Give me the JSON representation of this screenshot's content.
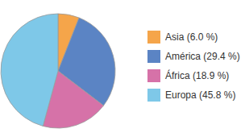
{
  "chart_data": {
    "type": "pie",
    "categories": [
      "Asia (6.0 %)",
      "América (29.4 %)",
      "África (18.9 %)",
      "Europa (45.8 %)"
    ],
    "values": [
      6.0,
      29.4,
      18.9,
      45.8
    ],
    "colors": [
      "#f5a54a",
      "#5b84c4",
      "#d672a8",
      "#7ec8e8"
    ],
    "legend": "right"
  }
}
